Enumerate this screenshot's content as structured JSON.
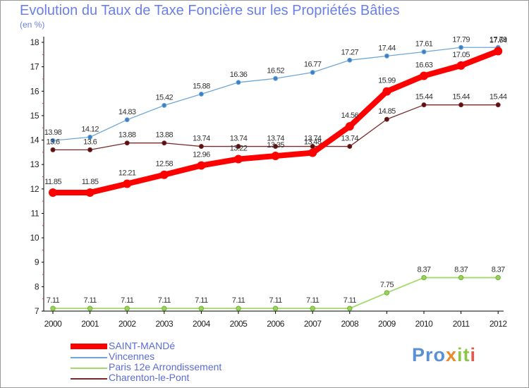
{
  "title": "Evolution du Taux de Taxe Foncière sur les Propriétés Bâties",
  "unit_label": "(en %)",
  "logo": {
    "text": "Proxiti",
    "parts": [
      "Pro",
      "x",
      "it",
      "i"
    ]
  },
  "chart_data": {
    "type": "line",
    "title": "Evolution du Taux de Taxe Foncière sur les Propriétés Bâties",
    "ylabel": "(en %)",
    "xlabel": "",
    "x": [
      "2000",
      "2001",
      "2002",
      "2003",
      "2004",
      "2005",
      "2006",
      "2007",
      "2008",
      "2009",
      "2010",
      "2011",
      "2012"
    ],
    "ylim": [
      7,
      18
    ],
    "yticks": [
      7,
      8,
      9,
      10,
      11,
      12,
      13,
      14,
      15,
      16,
      17,
      18
    ],
    "series": [
      {
        "name": "SAINT-MANDé",
        "color": "#ff0000",
        "values": [
          11.85,
          11.85,
          12.21,
          12.58,
          12.96,
          13.22,
          13.35,
          13.48,
          14.56,
          15.99,
          16.63,
          17.05,
          17.64
        ],
        "labels": [
          "11.85",
          "11.85",
          "12.21",
          "12.58",
          "12.96",
          "13.22",
          "13.35",
          "13.48",
          "14.56",
          "15.99",
          "16.63",
          "17.05",
          "17.64"
        ]
      },
      {
        "name": "Vincennes",
        "color": "#6fa7d6",
        "values": [
          13.98,
          14.12,
          14.83,
          15.42,
          15.88,
          16.36,
          16.52,
          16.77,
          17.27,
          17.44,
          17.61,
          17.79,
          17.79
        ],
        "labels": [
          "13.98",
          "14.12",
          "14.83",
          "15.42",
          "15.88",
          "16.36",
          "16.52",
          "16.77",
          "17.27",
          "17.44",
          "17.61",
          "17.79",
          "17.79"
        ]
      },
      {
        "name": "Paris 12e  Arrondissement",
        "color": "#a3d96b",
        "values": [
          7.11,
          7.11,
          7.11,
          7.11,
          7.11,
          7.11,
          7.11,
          7.11,
          7.11,
          7.75,
          8.37,
          8.37,
          8.37
        ],
        "labels": [
          "7.11",
          "7.11",
          "7.11",
          "7.11",
          "7.11",
          "7.11",
          "7.11",
          "7.11",
          "7.11",
          "7.75",
          "8.37",
          "8.37",
          "8.37"
        ]
      },
      {
        "name": "Charenton-le-Pont",
        "color": "#7a2a2a",
        "values": [
          13.6,
          13.6,
          13.88,
          13.88,
          13.74,
          13.74,
          13.74,
          13.74,
          13.74,
          14.85,
          15.44,
          15.44,
          15.44
        ],
        "labels": [
          "13.6",
          "13.6",
          "13.88",
          "13.88",
          "13.74",
          "13.74",
          "13.74",
          "13.74",
          "13.74",
          "14.85",
          "15.44",
          "15.44",
          "15.44"
        ]
      }
    ],
    "legend_position": "bottom-left",
    "grid": false
  }
}
